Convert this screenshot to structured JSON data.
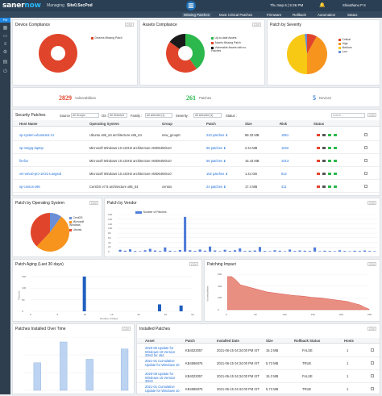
{
  "topbar": {
    "logo_a": "saner",
    "logo_b": "now",
    "managing_label": "Managing",
    "site": "Site0.SecPod",
    "date": "Thu Sep 6 | 5:36 PM",
    "user": "Shivathanu P S"
  },
  "nav": {
    "items": [
      "Missing Patches",
      "Most Critical Patches",
      "Firmware",
      "Rollback",
      "Automation",
      "Status"
    ],
    "active": 0
  },
  "sidebar": {
    "tag": "PM"
  },
  "device_compliance": {
    "title": "Device Compliance",
    "legend": "Devices Missing Patch",
    "tool": "CSV",
    "chart_data": {
      "type": "pie",
      "values": [
        100
      ],
      "labels": [
        "Devices Missing Patch"
      ],
      "colors": [
        "#e0452b"
      ]
    }
  },
  "assets_compliance": {
    "title": "Assets Compliance",
    "tool": "CSV",
    "chart_data": {
      "type": "pie",
      "labels": [
        "Up-to-date Assets",
        "Assets Missing Patch",
        "Vulnerable Assets with no Patches"
      ],
      "values": [
        40,
        45,
        15
      ],
      "colors": [
        "#2db84d",
        "#e0452b",
        "#1a1a1a"
      ]
    }
  },
  "patch_by_severity": {
    "title": "Patch by Severity",
    "chart_data": {
      "type": "pie",
      "labels": [
        "Critical",
        "High",
        "Medium",
        "Low"
      ],
      "values": [
        8,
        42,
        48,
        2
      ],
      "colors": [
        "#e0452b",
        "#f7941d",
        "#f7c914",
        "#6a8fd6"
      ]
    }
  },
  "summary": {
    "vuln_count": "2829",
    "vuln_label": "Vulnerabilities",
    "patch_count": "261",
    "patch_label": "Patches",
    "device_count": "5",
    "device_label": "Devices"
  },
  "security_patches": {
    "title": "Security Patches",
    "source_label": "Source :",
    "source_value": "All Groups",
    "os_label": "OS :",
    "os_value": "All Selected",
    "family_label": "Family :",
    "family_value": "All selected (1)",
    "severity_label": "Severity :",
    "severity_value": "All selected (4)",
    "status_label": "Status :",
    "search_placeholder": "search...",
    "columns": [
      "Host Name",
      "Operating System",
      "Group",
      "Patch",
      "Size",
      "Risk",
      "Status"
    ],
    "rows": [
      {
        "host": "sp-system-ubuntu64-14",
        "os": "Ubuntu x86_64 architecture x86_64",
        "group": "new_group0",
        "patch": "243 patches",
        "size": "88.33 MB",
        "risk": "1951"
      },
      {
        "host": "sp-netgrg-laptop",
        "os": "Microsoft Windows 10 x32H2 architecture AMD64",
        "group": "Win10",
        "patch": "68 patches",
        "size": "2.44 MB",
        "risk": "1032"
      },
      {
        "host": "firefox",
        "os": "Microsoft Windows 10 x32H2 architecture AMD64",
        "group": "Win10",
        "patch": "66 patches",
        "size": "15.43 MB",
        "risk": "1013"
      },
      {
        "host": "vm-win10-pro-1H21-Langsdt",
        "os": "Microsoft Windows 10 x32H2 architecture AMD64",
        "group": "Win10",
        "patch": "102 patches",
        "size": "1.44 GB",
        "risk": "912"
      },
      {
        "host": "sp-centos-x86",
        "os": "CentOS v7.8 architecture x86_64",
        "group": "centos",
        "patch": "24 patches",
        "size": "17.4 MB",
        "risk": "411"
      }
    ]
  },
  "patch_by_os": {
    "title": "Patch by Operating System",
    "tool": "CSV",
    "chart_data": {
      "type": "pie",
      "labels": [
        "CentOS",
        "Microsoft Windows",
        "Ubuntu"
      ],
      "values": [
        10,
        52,
        38
      ],
      "colors": [
        "#6a8fd6",
        "#f7941d",
        "#e0452b"
      ]
    }
  },
  "patch_by_vendor": {
    "title": "Patch by Vendor",
    "tool": "CSV",
    "chart_data": {
      "type": "bar",
      "series": [
        {
          "name": "Number of Patches",
          "color": "#4f7cd9"
        }
      ],
      "ylim": [
        0,
        160
      ],
      "yticks": [
        "160",
        "140",
        "120",
        "100",
        "80",
        "60",
        "40",
        "20",
        "0"
      ],
      "values": [
        8,
        4,
        10,
        3,
        2,
        6,
        12,
        5,
        3,
        18,
        4,
        2,
        7,
        150,
        6,
        3,
        9,
        4,
        22,
        5,
        2,
        8,
        3,
        6,
        14,
        3,
        4,
        5,
        20,
        3,
        2,
        6,
        4,
        2,
        9,
        3,
        5,
        4,
        3,
        18,
        2,
        4,
        3,
        2,
        6,
        3,
        2,
        4,
        3,
        5,
        3,
        2
      ]
    }
  },
  "patch_aging": {
    "title": "Patch Aging (Last 30 days)",
    "tool": "CSV",
    "xlabel": "Number of Days",
    "ylabel": "Patches",
    "chart_data": {
      "type": "bar",
      "categories": [
        "0",
        "5",
        "10",
        "15",
        "20",
        "25",
        "30"
      ],
      "x": [
        10,
        24,
        28
      ],
      "values": [
        150,
        30,
        25
      ],
      "ylim": [
        0,
        160
      ],
      "yticks": [
        "150",
        "100",
        "50",
        "0"
      ]
    }
  },
  "patching_impact": {
    "title": "Patching Impact",
    "tool": "CSV",
    "ylabel": "Vulnerabilities",
    "xticks": [
      "0",
      "50",
      "100",
      "150",
      "200",
      "250"
    ],
    "yticks": [
      "600",
      "400",
      "200",
      "0"
    ],
    "chart_data": {
      "type": "area",
      "values": [
        560,
        560,
        500,
        420,
        400,
        380,
        360,
        340,
        320,
        300,
        290,
        280,
        270,
        260,
        250,
        240,
        235,
        230,
        220,
        210,
        205,
        200,
        190,
        180,
        170,
        160,
        150,
        140,
        120,
        100,
        80,
        40,
        10
      ],
      "ylim": [
        0,
        600
      ],
      "color": "#e98f82"
    }
  },
  "patches_installed": {
    "title": "Patches Installed Over Time",
    "tool": "CSV",
    "chart_data": {
      "type": "bar",
      "values": [
        0,
        8,
        0,
        0,
        14,
        0,
        0,
        9,
        0,
        0,
        0,
        12
      ],
      "color": "#bcd3f2"
    }
  },
  "installed_patches": {
    "title": "Installed Patches",
    "tool": "CSV",
    "columns": [
      "Asset",
      "Patch",
      "Installed Date",
      "Size",
      "Rollback Status",
      "Hosts"
    ],
    "rows": [
      {
        "asset": "2020-06 Update for Windows 10 Version 20H2 for x64",
        "patch": "KB4023057",
        "date": "2021-06-15 04:34:00 PM IST",
        "size": "15.3 MB",
        "rollback": "FALSE",
        "hosts": "1"
      },
      {
        "asset": "2021-01 Cumulative Update for Windows 10",
        "patch": "KB4586876",
        "date": "2021-06-15 04:34:00 PM IST",
        "size": "5.73 MB",
        "rollback": "TRUE",
        "hosts": "1"
      },
      {
        "asset": "2020-06 Update for Windows 10 Version 20H2",
        "patch": "KB4023057",
        "date": "2021-06-15 04:34:00 PM IST",
        "size": "15.3 MB",
        "rollback": "FALSE",
        "hosts": "1"
      },
      {
        "asset": "2021-01 Cumulative Update for Windows 10",
        "patch": "KB4586876",
        "date": "2021-06-15 04:34:00 PM IST",
        "size": "5.73 MB",
        "rollback": "TRUE",
        "hosts": "1"
      }
    ]
  }
}
